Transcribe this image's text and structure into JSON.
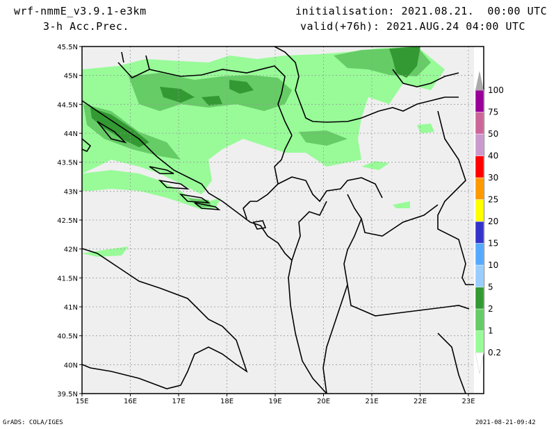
{
  "header": {
    "model": "wrf-nmmE_v3.9.1-e3km",
    "field": "3-h Acc.Prec.",
    "init": "initialisation: 2021.08.21.  00:00 UTC",
    "valid": "valid(+76h): 2021.AUG.24 04:00 UTC"
  },
  "footer": {
    "credit": "GrADS: COLA/IGES",
    "timestamp": "2021-08-21-09:42"
  },
  "map": {
    "lat_labels": [
      "45.5N",
      "45N",
      "44.5N",
      "44N",
      "43.5N",
      "43N",
      "42.5N",
      "42N",
      "41.5N",
      "41N",
      "40.5N",
      "40N",
      "39.5N"
    ],
    "lon_labels": [
      "15E",
      "16E",
      "17E",
      "18E",
      "19E",
      "20E",
      "21E",
      "22E",
      "23E"
    ],
    "extent": {
      "lon": [
        15,
        23.25
      ],
      "lat": [
        39.5,
        45.5
      ]
    },
    "grid": true,
    "colors": {
      "land": "#efefef",
      "border": "#000000",
      "grid": "#999999"
    }
  },
  "legend": {
    "levels": [
      "0.2",
      "1",
      "2",
      "5",
      "10",
      "15",
      "20",
      "25",
      "30",
      "40",
      "50",
      "75",
      "100"
    ],
    "colors": [
      "#98fb98",
      "#66cc66",
      "#339933",
      "#99ccff",
      "#55aaff",
      "#3333cc",
      "#ffff00",
      "#ff9900",
      "#ff0000",
      "#cc99cc",
      "#cc6699",
      "#990099",
      "#aaaaaa"
    ]
  }
}
